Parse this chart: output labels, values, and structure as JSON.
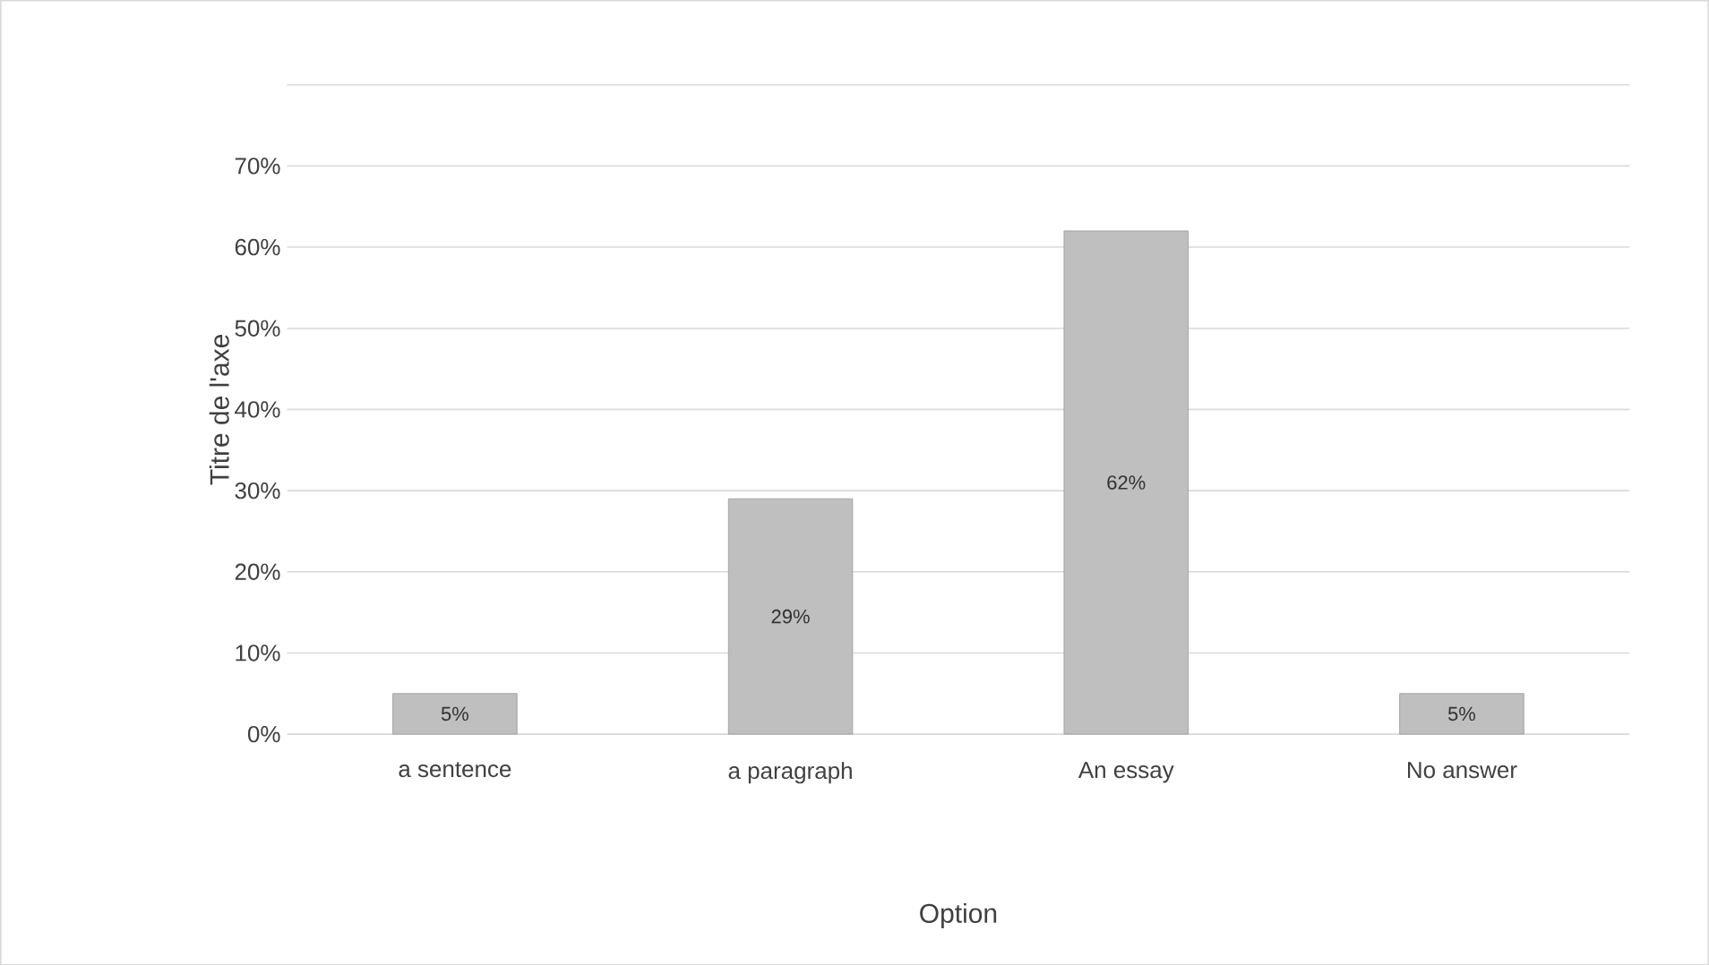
{
  "chart_data": {
    "type": "bar",
    "categories": [
      "a sentence",
      "a paragraph",
      "An essay",
      "No answer"
    ],
    "values": [
      5,
      29,
      62,
      5
    ],
    "value_labels": [
      "5%",
      "29%",
      "62%",
      "5%"
    ],
    "color": "#bfbfbf",
    "xlabel": "Option",
    "ylabel": "Titre de l'axe",
    "ylim": [
      0,
      80
    ],
    "yticks": [
      {
        "value": 0,
        "label": "0%"
      },
      {
        "value": 10,
        "label": "10%"
      },
      {
        "value": 20,
        "label": "20%"
      },
      {
        "value": 30,
        "label": "30%"
      },
      {
        "value": 40,
        "label": "40%"
      },
      {
        "value": 50,
        "label": "50%"
      },
      {
        "value": 60,
        "label": "60%"
      },
      {
        "value": 70,
        "label": "70%"
      },
      {
        "value": 80,
        "label": null
      }
    ],
    "grid": "y"
  }
}
